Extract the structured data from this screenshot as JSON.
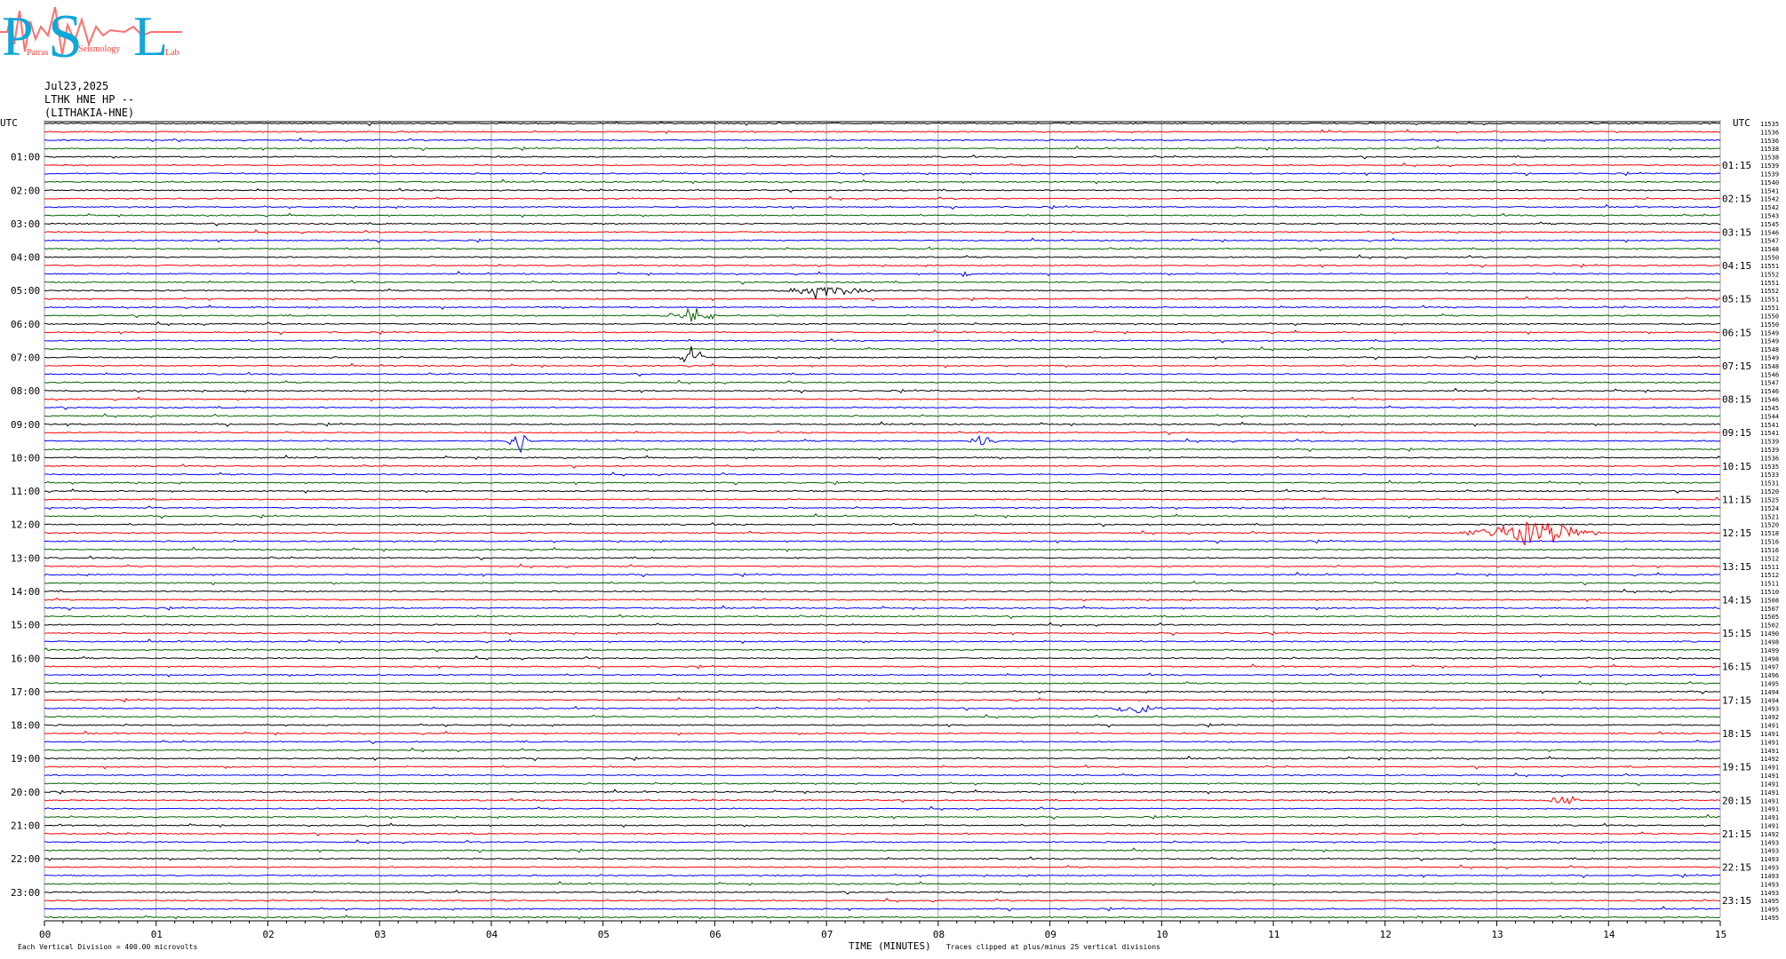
{
  "logo": {
    "letters": "PSL",
    "tagline": [
      "Patras",
      "Seismology",
      "Lab"
    ]
  },
  "header": {
    "date": "Jul23,2025",
    "station_line": "LTHK HNE HP --",
    "station_name": "(LITHAKIA-HNE)"
  },
  "colors": {
    "trace_cycle": [
      "#000000",
      "#ff0000",
      "#0000ff",
      "#006400"
    ],
    "grid": "#a0a0a0"
  },
  "chart_data": {
    "type": "helicorder",
    "traces_per_hour": 4,
    "trace_count": 96,
    "left_axis_title": "UTC",
    "right_axis_title": "UTC",
    "left_hour_labels": [
      "01:00",
      "02:00",
      "03:00",
      "04:00",
      "05:00",
      "06:00",
      "07:00",
      "08:00",
      "09:00",
      "10:00",
      "11:00",
      "12:00",
      "13:00",
      "14:00",
      "15:00",
      "16:00",
      "17:00",
      "18:00",
      "19:00",
      "20:00",
      "21:00",
      "22:00",
      "23:00"
    ],
    "right_hour_labels": [
      "01:15",
      "02:15",
      "03:15",
      "04:15",
      "05:15",
      "06:15",
      "07:15",
      "08:15",
      "09:15",
      "10:15",
      "11:15",
      "12:15",
      "13:15",
      "14:15",
      "15:15",
      "16:15",
      "17:15",
      "18:15",
      "19:15",
      "20:15",
      "21:15",
      "22:15",
      "23:15"
    ],
    "x_ticks": [
      "00",
      "01",
      "02",
      "03",
      "04",
      "05",
      "06",
      "07",
      "08",
      "09",
      "10",
      "11",
      "12",
      "13",
      "14",
      "15"
    ],
    "xlabel": "TIME (MINUTES)",
    "xlim": [
      0,
      15
    ],
    "trace_offsets": [
      11535,
      11536,
      11536,
      11538,
      11538,
      11539,
      11539,
      11540,
      11541,
      11542,
      11542,
      11543,
      11545,
      11546,
      11547,
      11548,
      11550,
      11551,
      11552,
      11551,
      11552,
      11551,
      11551,
      11550,
      11550,
      11549,
      11549,
      11548,
      11549,
      11548,
      11546,
      11547,
      11546,
      11546,
      11545,
      11544,
      11541,
      11541,
      11539,
      11539,
      11536,
      11535,
      11533,
      11531,
      11520,
      11525,
      11524,
      11521,
      11520,
      11518,
      11516,
      11516,
      11512,
      11511,
      11512,
      11511,
      11510,
      11508,
      11507,
      11505,
      11502,
      11490,
      11498,
      11499,
      11498,
      11497,
      11496,
      11495,
      11494,
      11494,
      11493,
      11492,
      11491,
      11491,
      11491,
      11491,
      11492,
      11491,
      11491,
      11491,
      11491,
      11491,
      11491,
      11491,
      11491,
      11492,
      11493,
      11493,
      11493,
      11493,
      11493,
      11493,
      11493,
      11495,
      11495,
      11495
    ],
    "events": [
      {
        "trace": 18,
        "minute": 8.25,
        "amplitude": 2.6,
        "duration_minutes": 0.08
      },
      {
        "trace": 20,
        "minute": 7.0,
        "amplitude": 1.6,
        "duration_minutes": 0.9
      },
      {
        "trace": 23,
        "minute": 5.8,
        "amplitude": 2.0,
        "duration_minutes": 0.5
      },
      {
        "trace": 28,
        "minute": 5.8,
        "amplitude": 2.2,
        "duration_minutes": 0.25
      },
      {
        "trace": 38,
        "minute": 4.25,
        "amplitude": 2.5,
        "duration_minutes": 0.25
      },
      {
        "trace": 38,
        "minute": 8.4,
        "amplitude": 1.4,
        "duration_minutes": 0.3
      },
      {
        "trace": 49,
        "minute": 13.3,
        "amplitude": 2.8,
        "duration_minutes": 1.3
      },
      {
        "trace": 70,
        "minute": 9.8,
        "amplitude": 1.2,
        "duration_minutes": 0.5
      },
      {
        "trace": 81,
        "minute": 13.6,
        "amplitude": 1.3,
        "duration_minutes": 0.3
      }
    ],
    "footer_left": "Each Vertical Division =  400.00 microvolts",
    "footer_right": "Traces clipped at plus/minus 25 vertical divisions"
  }
}
